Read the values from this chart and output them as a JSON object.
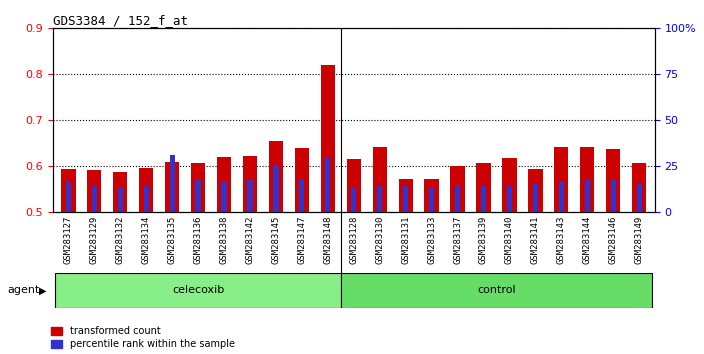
{
  "title": "GDS3384 / 152_f_at",
  "samples": [
    "GSM283127",
    "GSM283129",
    "GSM283132",
    "GSM283134",
    "GSM283135",
    "GSM283136",
    "GSM283138",
    "GSM283142",
    "GSM283145",
    "GSM283147",
    "GSM283148",
    "GSM283128",
    "GSM283130",
    "GSM283131",
    "GSM283133",
    "GSM283137",
    "GSM283139",
    "GSM283140",
    "GSM283141",
    "GSM283143",
    "GSM283144",
    "GSM283146",
    "GSM283149"
  ],
  "red_values": [
    0.595,
    0.592,
    0.587,
    0.597,
    0.61,
    0.608,
    0.62,
    0.622,
    0.655,
    0.64,
    0.82,
    0.615,
    0.642,
    0.572,
    0.572,
    0.6,
    0.607,
    0.618,
    0.595,
    0.642,
    0.642,
    0.638,
    0.607
  ],
  "blue_values": [
    0.565,
    0.558,
    0.555,
    0.558,
    0.625,
    0.572,
    0.565,
    0.57,
    0.602,
    0.572,
    0.618,
    0.555,
    0.558,
    0.558,
    0.555,
    0.56,
    0.558,
    0.558,
    0.562,
    0.565,
    0.57,
    0.572,
    0.562
  ],
  "celecoxib_count": 11,
  "control_count": 12,
  "ylim_left": [
    0.5,
    0.9
  ],
  "ylim_right": [
    0,
    100
  ],
  "yticks_left": [
    0.5,
    0.6,
    0.7,
    0.8,
    0.9
  ],
  "yticks_right": [
    0,
    25,
    50,
    75,
    100
  ],
  "ytick_right_labels": [
    "0",
    "25",
    "50",
    "75",
    "100%"
  ],
  "red_color": "#cc0000",
  "blue_color": "#3333cc",
  "celecoxib_color": "#88ee88",
  "control_color": "#66dd66",
  "agent_label": "agent",
  "celecoxib_label": "celecoxib",
  "control_label": "control",
  "legend_red": "transformed count",
  "legend_blue": "percentile rank within the sample",
  "bar_width": 0.55,
  "blue_bar_width": 0.2,
  "tick_bg_color": "#cccccc",
  "plot_bg": "white"
}
